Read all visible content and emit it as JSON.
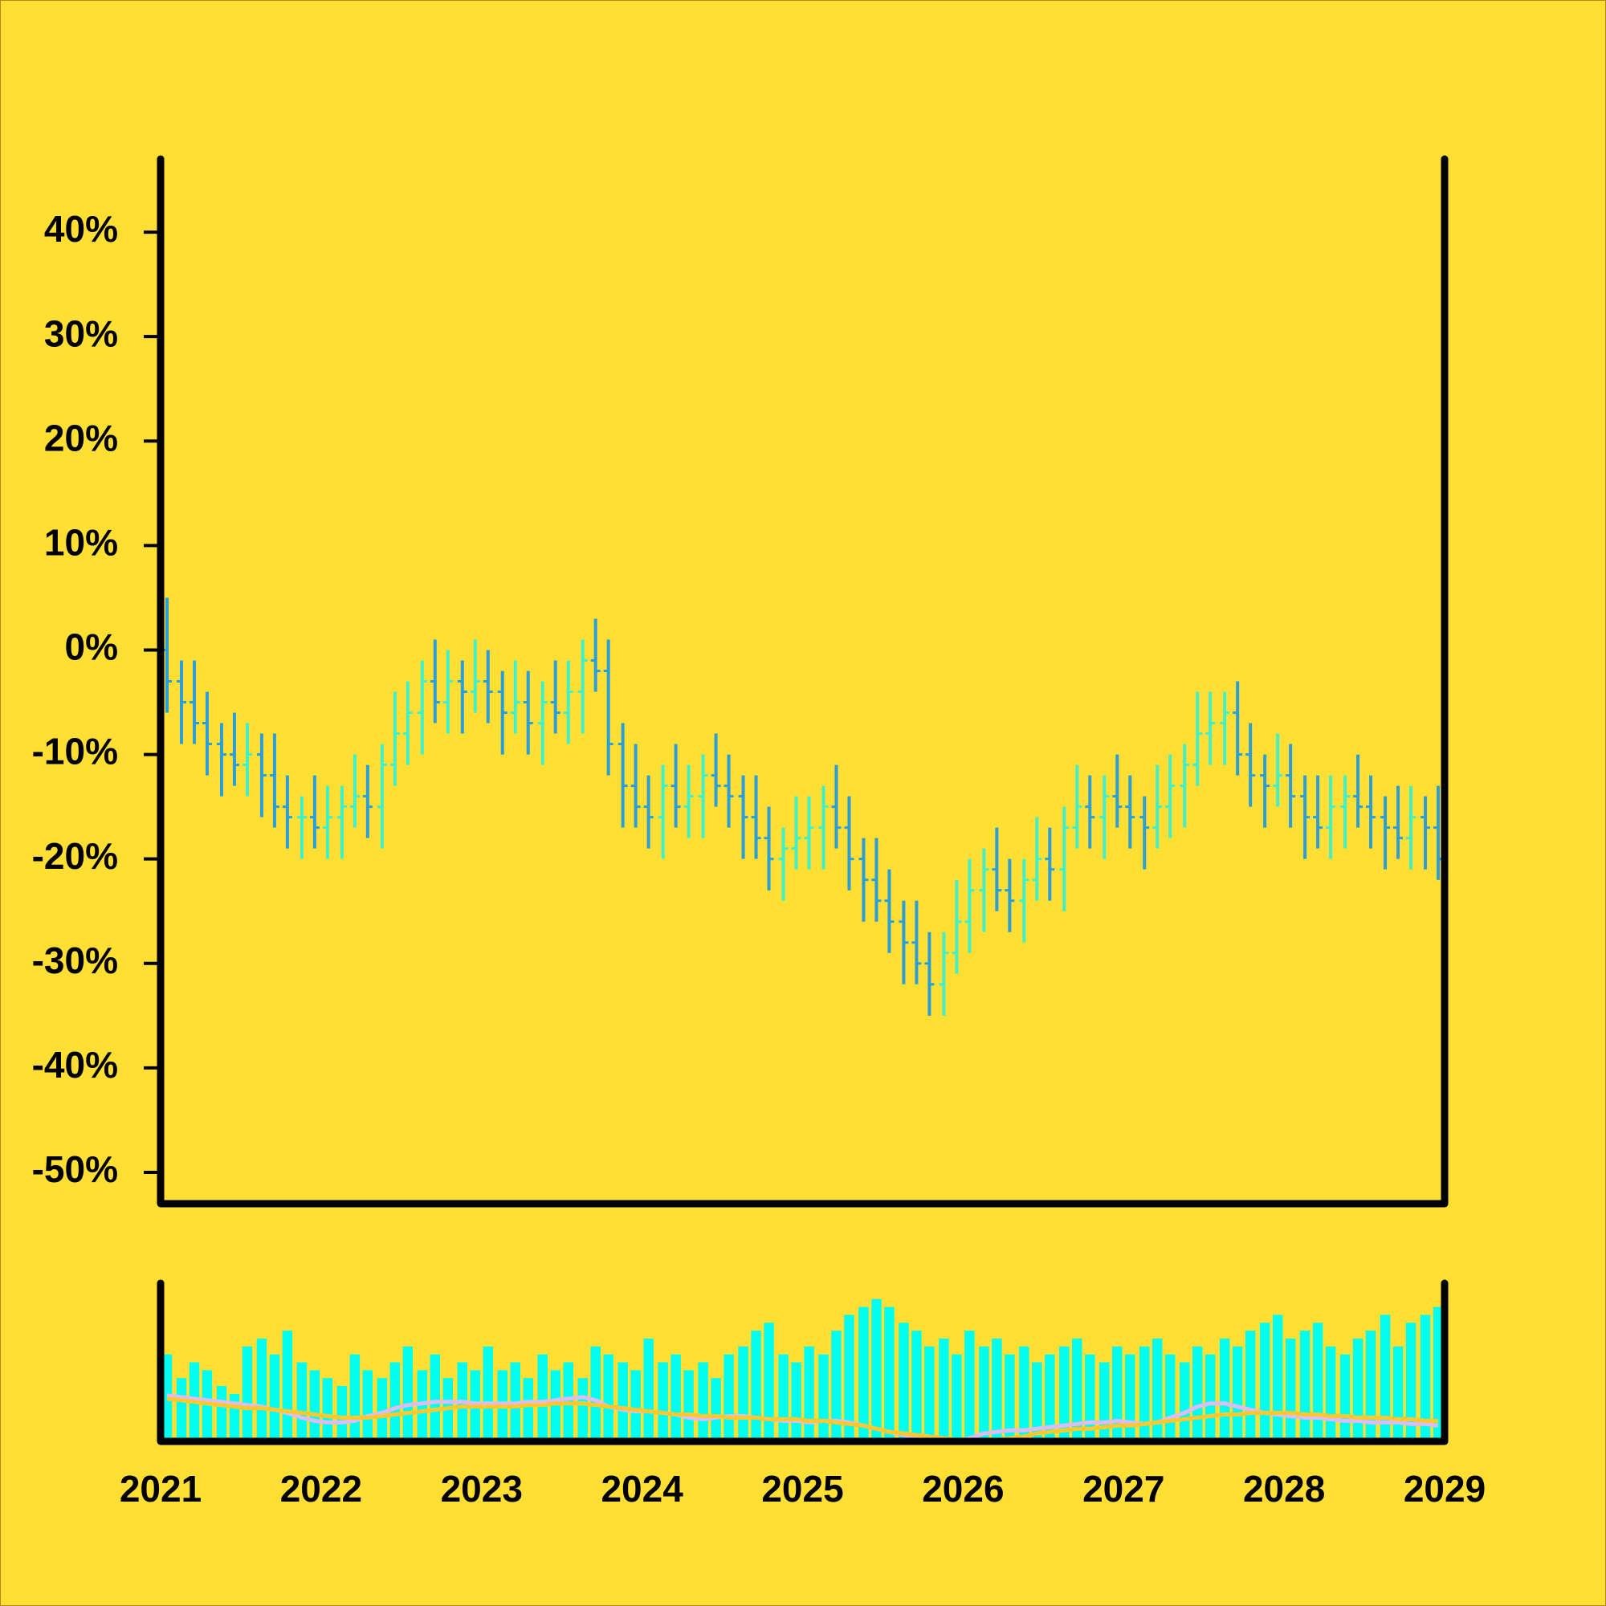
{
  "chart_data": [
    {
      "type": "ohlc",
      "x": [
        2021.04,
        2021.13,
        2021.21,
        2021.29,
        2021.38,
        2021.46,
        2021.54,
        2021.63,
        2021.71,
        2021.79,
        2021.88,
        2021.96,
        2022.04,
        2022.13,
        2022.21,
        2022.29,
        2022.38,
        2022.46,
        2022.54,
        2022.63,
        2022.71,
        2022.79,
        2022.88,
        2022.96,
        2023.04,
        2023.13,
        2023.21,
        2023.29,
        2023.38,
        2023.46,
        2023.54,
        2023.63,
        2023.71,
        2023.79,
        2023.88,
        2023.96,
        2024.04,
        2024.13,
        2024.21,
        2024.29,
        2024.38,
        2024.46,
        2024.54,
        2024.63,
        2024.71,
        2024.79,
        2024.88,
        2024.96,
        2025.04,
        2025.13,
        2025.21,
        2025.29,
        2025.38,
        2025.46,
        2025.54,
        2025.63,
        2025.71,
        2025.79,
        2025.88,
        2025.96,
        2026.04,
        2026.13,
        2026.21,
        2026.29,
        2026.38,
        2026.46,
        2026.54,
        2026.63,
        2026.71,
        2026.79,
        2026.88,
        2026.96,
        2027.04,
        2027.13,
        2027.21,
        2027.29,
        2027.38,
        2027.46,
        2027.54,
        2027.63,
        2027.71,
        2027.79,
        2027.88,
        2027.96,
        2028.04,
        2028.13,
        2028.21,
        2028.29,
        2028.38,
        2028.46,
        2028.54,
        2028.63,
        2028.71,
        2028.79,
        2028.88,
        2028.96
      ],
      "open": [
        0,
        -3,
        -5,
        -7,
        -9,
        -10,
        -11,
        -10,
        -12,
        -15,
        -16,
        -16,
        -17,
        -16,
        -15,
        -14,
        -15,
        -11,
        -8,
        -6,
        -3,
        -5,
        -3,
        -4,
        -3,
        -4,
        -6,
        -5,
        -7,
        -5,
        -6,
        -4,
        -1,
        -2,
        -9,
        -13,
        -15,
        -16,
        -13,
        -15,
        -14,
        -12,
        -13,
        -14,
        -16,
        -18,
        -20,
        -19,
        -18,
        -17,
        -15,
        -17,
        -20,
        -22,
        -24,
        -26,
        -28,
        -30,
        -32,
        -29,
        -26,
        -23,
        -21,
        -23,
        -24,
        -22,
        -20,
        -21,
        -17,
        -15,
        -16,
        -14,
        -15,
        -16,
        -17,
        -15,
        -13,
        -11,
        -8,
        -7,
        -6,
        -10,
        -12,
        -13,
        -12,
        -14,
        -16,
        -17,
        -15,
        -14,
        -15,
        -16,
        -17,
        -18,
        -16,
        -17
      ],
      "high": [
        5,
        -1,
        -1,
        -4,
        -7,
        -6,
        -7,
        -8,
        -8,
        -12,
        -14,
        -12,
        -13,
        -13,
        -10,
        -11,
        -9,
        -4,
        -3,
        -1,
        1,
        0,
        -1,
        1,
        0,
        -2,
        -1,
        -2,
        -3,
        -1,
        -1,
        1,
        3,
        1,
        -7,
        -9,
        -12,
        -11,
        -9,
        -11,
        -10,
        -8,
        -10,
        -12,
        -12,
        -15,
        -17,
        -14,
        -14,
        -13,
        -11,
        -14,
        -18,
        -18,
        -21,
        -24,
        -24,
        -27,
        -27,
        -22,
        -20,
        -19,
        -17,
        -20,
        -20,
        -16,
        -17,
        -15,
        -11,
        -12,
        -12,
        -10,
        -12,
        -14,
        -11,
        -10,
        -9,
        -4,
        -4,
        -4,
        -3,
        -7,
        -10,
        -8,
        -9,
        -12,
        -12,
        -12,
        -12,
        -10,
        -12,
        -14,
        -13,
        -13,
        -14,
        -13
      ],
      "low": [
        -6,
        -9,
        -9,
        -12,
        -14,
        -13,
        -14,
        -16,
        -17,
        -19,
        -20,
        -19,
        -20,
        -20,
        -17,
        -18,
        -19,
        -13,
        -11,
        -10,
        -7,
        -8,
        -8,
        -6,
        -7,
        -10,
        -8,
        -10,
        -11,
        -8,
        -9,
        -8,
        -4,
        -12,
        -17,
        -17,
        -19,
        -20,
        -17,
        -18,
        -18,
        -15,
        -17,
        -20,
        -20,
        -23,
        -24,
        -21,
        -21,
        -21,
        -19,
        -23,
        -26,
        -26,
        -29,
        -32,
        -32,
        -35,
        -35,
        -31,
        -29,
        -27,
        -25,
        -27,
        -28,
        -24,
        -24,
        -25,
        -19,
        -19,
        -20,
        -17,
        -19,
        -21,
        -19,
        -18,
        -17,
        -13,
        -11,
        -11,
        -12,
        -15,
        -17,
        -15,
        -17,
        -20,
        -19,
        -20,
        -19,
        -17,
        -19,
        -21,
        -20,
        -21,
        -21,
        -22
      ],
      "close": [
        -3,
        -5,
        -7,
        -9,
        -10,
        -11,
        -10,
        -12,
        -15,
        -16,
        -16,
        -17,
        -16,
        -15,
        -14,
        -15,
        -11,
        -8,
        -6,
        -3,
        -5,
        -3,
        -4,
        -3,
        -4,
        -6,
        -5,
        -7,
        -5,
        -6,
        -4,
        -1,
        -2,
        -9,
        -13,
        -15,
        -16,
        -13,
        -15,
        -14,
        -12,
        -13,
        -14,
        -16,
        -18,
        -20,
        -19,
        -18,
        -17,
        -15,
        -17,
        -20,
        -22,
        -24,
        -26,
        -28,
        -30,
        -32,
        -29,
        -26,
        -23,
        -21,
        -23,
        -24,
        -22,
        -20,
        -21,
        -17,
        -15,
        -16,
        -14,
        -15,
        -16,
        -17,
        -15,
        -13,
        -11,
        -8,
        -7,
        -6,
        -10,
        -12,
        -13,
        -12,
        -14,
        -16,
        -17,
        -15,
        -14,
        -15,
        -16,
        -17,
        -18,
        -16,
        -17,
        -20
      ],
      "up_color": "#3ff0c8",
      "down_color": "#2a9ed8",
      "xlim": [
        2021,
        2029
      ],
      "ylim": [
        -53,
        47
      ],
      "yticks": [
        {
          "value": 40,
          "label": "40%"
        },
        {
          "value": 30,
          "label": "30%"
        },
        {
          "value": 20,
          "label": "20%"
        },
        {
          "value": 10,
          "label": "10%"
        },
        {
          "value": 0,
          "label": "0%"
        },
        {
          "value": -10,
          "label": "-10%"
        },
        {
          "value": -20,
          "label": "-20%"
        },
        {
          "value": -30,
          "label": "-30%"
        },
        {
          "value": -40,
          "label": "-40%"
        },
        {
          "value": -50,
          "label": "-50%"
        }
      ]
    },
    {
      "type": "bar",
      "x": [
        2021.04,
        2021.13,
        2021.21,
        2021.29,
        2021.38,
        2021.46,
        2021.54,
        2021.63,
        2021.71,
        2021.79,
        2021.88,
        2021.96,
        2022.04,
        2022.13,
        2022.21,
        2022.29,
        2022.38,
        2022.46,
        2022.54,
        2022.63,
        2022.71,
        2022.79,
        2022.88,
        2022.96,
        2023.04,
        2023.13,
        2023.21,
        2023.29,
        2023.38,
        2023.46,
        2023.54,
        2023.63,
        2023.71,
        2023.79,
        2023.88,
        2023.96,
        2024.04,
        2024.13,
        2024.21,
        2024.29,
        2024.38,
        2024.46,
        2024.54,
        2024.63,
        2024.71,
        2024.79,
        2024.88,
        2024.96,
        2025.04,
        2025.13,
        2025.21,
        2025.29,
        2025.38,
        2025.46,
        2025.54,
        2025.63,
        2025.71,
        2025.79,
        2025.88,
        2025.96,
        2026.04,
        2026.13,
        2026.21,
        2026.29,
        2026.38,
        2026.46,
        2026.54,
        2026.63,
        2026.71,
        2026.79,
        2026.88,
        2026.96,
        2027.04,
        2027.13,
        2027.21,
        2027.29,
        2027.38,
        2027.46,
        2027.54,
        2027.63,
        2027.71,
        2027.79,
        2027.88,
        2027.96,
        2028.04,
        2028.13,
        2028.21,
        2028.29,
        2028.38,
        2028.46,
        2028.54,
        2028.63,
        2028.71,
        2028.79,
        2028.88,
        2028.96
      ],
      "values": [
        55,
        40,
        50,
        45,
        35,
        30,
        60,
        65,
        55,
        70,
        50,
        45,
        40,
        35,
        55,
        45,
        40,
        50,
        60,
        45,
        55,
        40,
        50,
        45,
        60,
        45,
        50,
        40,
        55,
        45,
        50,
        40,
        60,
        55,
        50,
        45,
        65,
        50,
        55,
        45,
        50,
        40,
        55,
        60,
        70,
        75,
        55,
        50,
        60,
        55,
        70,
        80,
        85,
        90,
        85,
        75,
        70,
        60,
        65,
        55,
        70,
        60,
        65,
        55,
        60,
        50,
        55,
        60,
        65,
        55,
        50,
        60,
        55,
        60,
        65,
        55,
        50,
        60,
        55,
        65,
        60,
        70,
        75,
        80,
        65,
        70,
        75,
        60,
        55,
        65,
        70,
        80,
        60,
        75,
        80,
        85
      ],
      "color": "#00ffee",
      "lines": [
        {
          "color": "#dcbcf2",
          "values": [
            29,
            28,
            27,
            26,
            25,
            24,
            23,
            22,
            20,
            18,
            15,
            13,
            12,
            12,
            13,
            16,
            18,
            21,
            23,
            24,
            25,
            25,
            25,
            24,
            24,
            24,
            24,
            25,
            25,
            26,
            27,
            28,
            26,
            22,
            20,
            19,
            19,
            18,
            17,
            15,
            14,
            15,
            16,
            16,
            15,
            14,
            13,
            13,
            12,
            13,
            13,
            12,
            10,
            8,
            6,
            4,
            2,
            1,
            0,
            0,
            2,
            5,
            6,
            7,
            7,
            8,
            9,
            10,
            11,
            12,
            12,
            13,
            12,
            11,
            12,
            15,
            18,
            22,
            24,
            24,
            22,
            20,
            18,
            17,
            16,
            15,
            15,
            14,
            13,
            13,
            12,
            12,
            12,
            11,
            11,
            10
          ]
        },
        {
          "color": "#ffc830",
          "values": [
            27,
            26,
            25,
            24,
            23,
            22,
            21,
            21,
            20,
            19,
            18,
            17,
            16,
            15,
            15,
            15,
            16,
            17,
            18,
            19,
            20,
            21,
            22,
            22,
            22,
            22,
            22,
            23,
            23,
            24,
            24,
            24,
            23,
            22,
            21,
            20,
            19,
            18,
            17,
            17,
            16,
            16,
            15,
            15,
            15,
            14,
            14,
            14,
            13,
            13,
            12,
            11,
            10,
            8,
            6,
            5,
            4,
            3,
            2,
            1,
            0,
            0,
            1,
            2,
            3,
            5,
            6,
            7,
            8,
            8,
            9,
            10,
            10,
            11,
            12,
            13,
            14,
            15,
            16,
            17,
            17,
            18,
            18,
            18,
            18,
            17,
            17,
            16,
            16,
            15,
            15,
            15,
            14,
            14,
            13,
            13
          ]
        }
      ],
      "xlim": [
        2021,
        2029
      ],
      "ylim": [
        0,
        100
      ],
      "xticks": [
        2021,
        2022,
        2023,
        2024,
        2025,
        2026,
        2027,
        2028,
        2029
      ]
    }
  ]
}
